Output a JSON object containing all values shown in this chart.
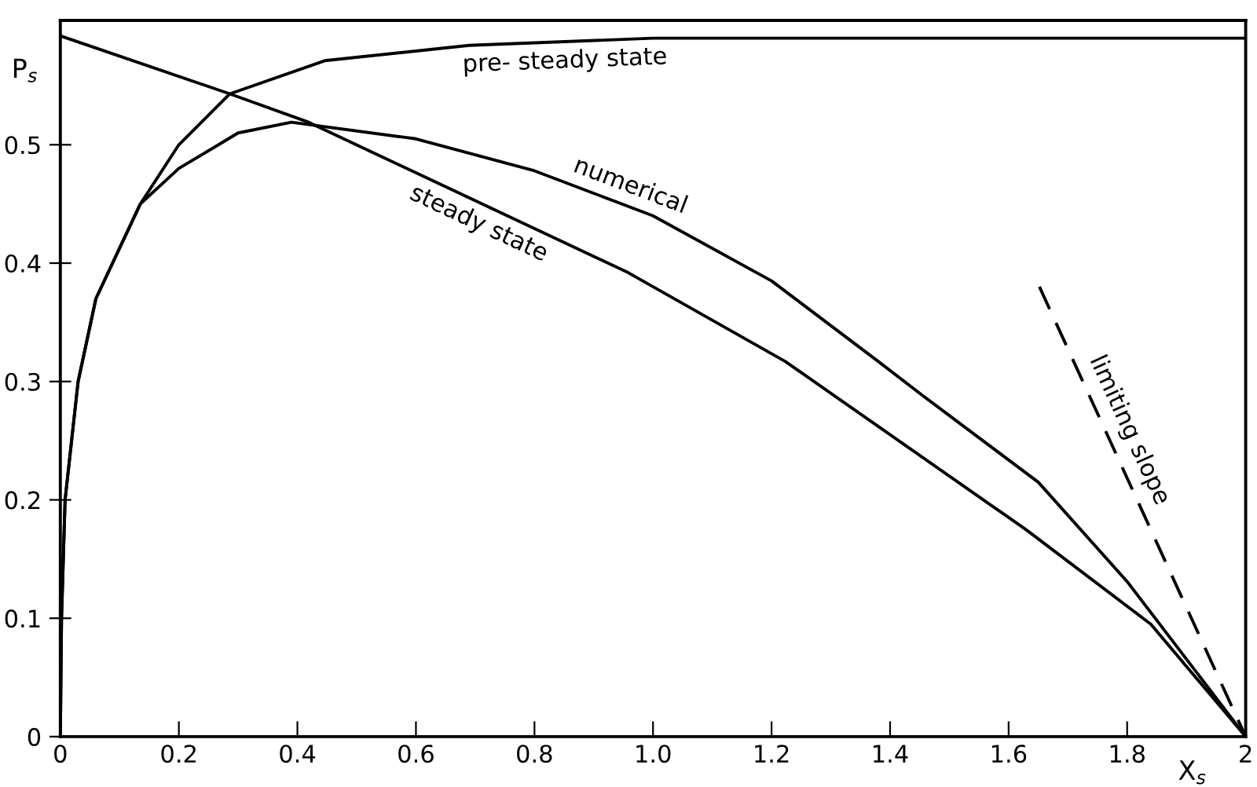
{
  "chart_data": {
    "type": "line",
    "xlabel": "X$_{s}$",
    "ylabel": "P$_{s}$",
    "xlim": [
      0,
      2
    ],
    "ylim": [
      0,
      0.605
    ],
    "xticks": [
      0,
      0.2,
      0.4,
      0.6,
      0.8,
      {
        "value": 1.0,
        "label": "1.0"
      },
      1.2,
      1.4,
      1.6,
      1.8,
      2
    ],
    "yticks": [
      0,
      0.1,
      0.2,
      0.3,
      0.4,
      0.5
    ],
    "grid": false,
    "legend": false,
    "series": [
      {
        "name": "pre- steady state",
        "color": "#000000",
        "x": [
          0,
          0.002,
          0.008,
          0.03,
          0.06,
          0.135,
          0.2,
          0.286,
          0.446,
          0.69,
          1.0,
          2
        ],
        "values": [
          0,
          0.1,
          0.2,
          0.3,
          0.37,
          0.45,
          0.5,
          0.543,
          0.571,
          0.584,
          0.59,
          0.59
        ]
      },
      {
        "name": "numerical",
        "color": "#000000",
        "x": [
          0,
          0.002,
          0.008,
          0.03,
          0.06,
          0.135,
          0.2,
          0.3,
          0.39,
          0.6,
          0.8,
          1.0,
          1.2,
          1.38,
          1.45,
          1.65,
          1.8,
          2
        ],
        "values": [
          0,
          0.1,
          0.2,
          0.3,
          0.37,
          0.45,
          0.48,
          0.51,
          0.519,
          0.505,
          0.478,
          0.44,
          0.385,
          0.317,
          0.29,
          0.215,
          0.131,
          0
        ]
      },
      {
        "name": "steady state",
        "color": "#000000",
        "x": [
          0,
          0.286,
          0.419,
          0.958,
          1.223,
          1.629,
          1.84,
          2
        ],
        "values": [
          0.592,
          0.543,
          0.519,
          0.392,
          0.317,
          0.175,
          0.095,
          0
        ]
      },
      {
        "name": "limiting slope",
        "color": "#000000",
        "line_style": "dashed",
        "x": [
          1.652,
          2
        ],
        "values": [
          0.38,
          0
        ]
      }
    ]
  }
}
